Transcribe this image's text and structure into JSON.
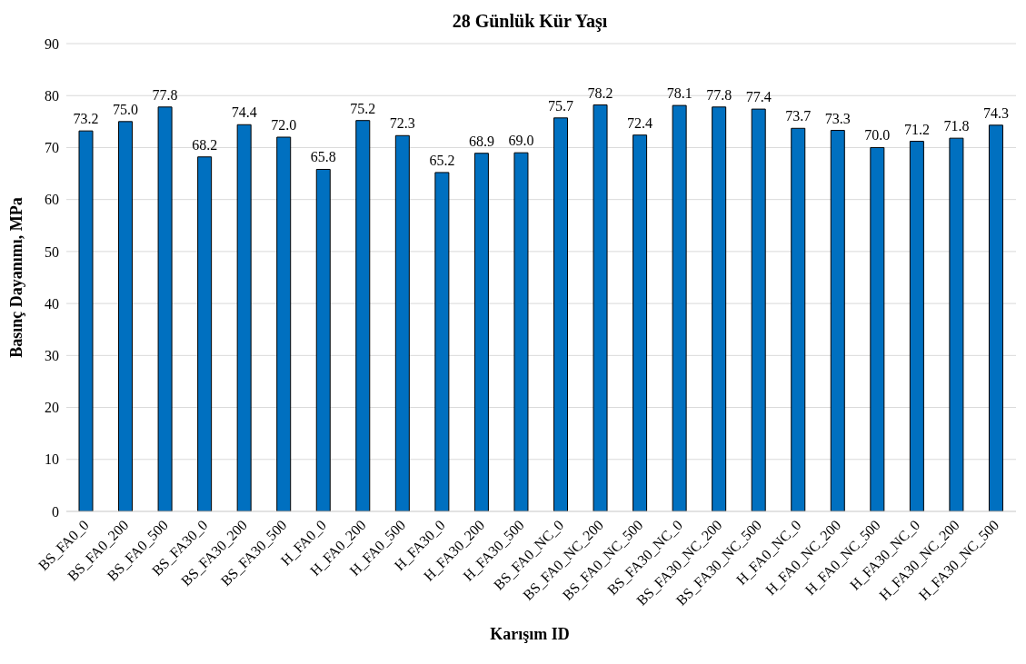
{
  "chart_data": {
    "type": "bar",
    "title": "28 Günlük Kür Yaşı",
    "xlabel": "Karışım ID",
    "ylabel": "Basınç Dayanımı, MPa",
    "categories": [
      "BS_FA0_0",
      "BS_FA0_200",
      "BS_FA0_500",
      "BS_FA30_0",
      "BS_FA30_200",
      "BS_FA30_500",
      "H_FA0_0",
      "H_FA0_200",
      "H_FA0_500",
      "H_FA30_0",
      "H_FA30_200",
      "H_FA30_500",
      "BS_FA0_NC_0",
      "BS_FA0_NC_200",
      "BS_FA0_NC_500",
      "BS_FA30_NC_0",
      "BS_FA30_NC_200",
      "BS_FA30_NC_500",
      "H_FA0_NC_0",
      "H_FA0_NC_200",
      "H_FA0_NC_500",
      "H_FA30_NC_0",
      "H_FA30_NC_200",
      "H_FA30_NC_500"
    ],
    "values": [
      73.2,
      75.0,
      77.8,
      68.2,
      74.4,
      72.0,
      65.8,
      75.2,
      72.3,
      65.2,
      68.9,
      69.0,
      75.7,
      78.2,
      72.4,
      78.1,
      77.8,
      77.4,
      73.7,
      73.3,
      70.0,
      71.2,
      71.8,
      74.3
    ],
    "value_labels": [
      "73.2",
      "75.0",
      "77.8",
      "68.2",
      "74.4",
      "72.0",
      "65.8",
      "75.2",
      "72.3",
      "65.2",
      "68.9",
      "69.0",
      "75.7",
      "78.2",
      "72.4",
      "78.1",
      "77.8",
      "77.4",
      "73.7",
      "73.3",
      "70.0",
      "71.2",
      "71.8",
      "74.3"
    ],
    "color": "#0070c0",
    "ylim": [
      0,
      90
    ],
    "yticks": [
      0,
      10,
      20,
      30,
      40,
      50,
      60,
      70,
      80,
      90
    ],
    "grid": "y"
  }
}
